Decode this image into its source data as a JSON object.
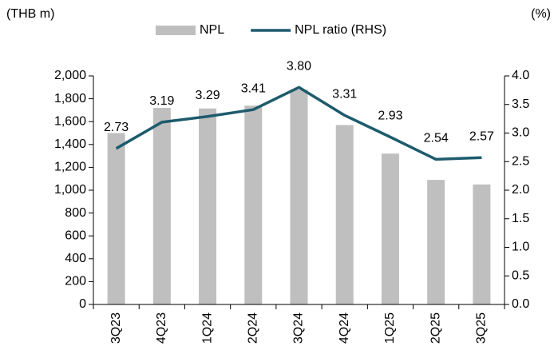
{
  "chart_data": {
    "type": "bar_line",
    "y_label": "(THB m)",
    "y2_label": "(%)",
    "categories": [
      "3Q23",
      "4Q23",
      "1Q24",
      "2Q24",
      "3Q24",
      "4Q24",
      "1Q25",
      "2Q25",
      "3Q25"
    ],
    "series": [
      {
        "name": "NPL",
        "type": "bar",
        "color": "#bfbfbf",
        "values": [
          1500,
          1720,
          1715,
          1740,
          1880,
          1570,
          1320,
          1090,
          1050
        ]
      },
      {
        "name": "NPL ratio (RHS)",
        "type": "line",
        "axis": "y2",
        "color": "#1d5b6d",
        "values": [
          2.73,
          3.19,
          3.29,
          3.41,
          3.8,
          3.31,
          2.93,
          2.54,
          2.57
        ],
        "value_labels": [
          "2.73",
          "3.19",
          "3.29",
          "3.41",
          "3.80",
          "3.31",
          "2.93",
          "2.54",
          "2.57"
        ]
      }
    ],
    "ylim": [
      0,
      2000
    ],
    "yticks": [
      0,
      200,
      400,
      600,
      800,
      {
        "value": 1000,
        "label": "1,000"
      },
      {
        "value": 1200,
        "label": "1,200"
      },
      {
        "value": 1400,
        "label": "1,400"
      },
      {
        "value": 1600,
        "label": "1,600"
      },
      {
        "value": 1800,
        "label": "1,800"
      },
      {
        "value": 2000,
        "label": "2,000"
      }
    ],
    "y2lim": [
      0,
      4
    ],
    "y2ticks": [
      {
        "value": 0,
        "label": "0.0"
      },
      0.5,
      {
        "value": 1,
        "label": "1.0"
      },
      1.5,
      {
        "value": 2,
        "label": "2.0"
      },
      2.5,
      {
        "value": 3,
        "label": "3.0"
      },
      3.5,
      {
        "value": 4,
        "label": "4.0"
      }
    ],
    "legend": "top",
    "grid": false
  }
}
